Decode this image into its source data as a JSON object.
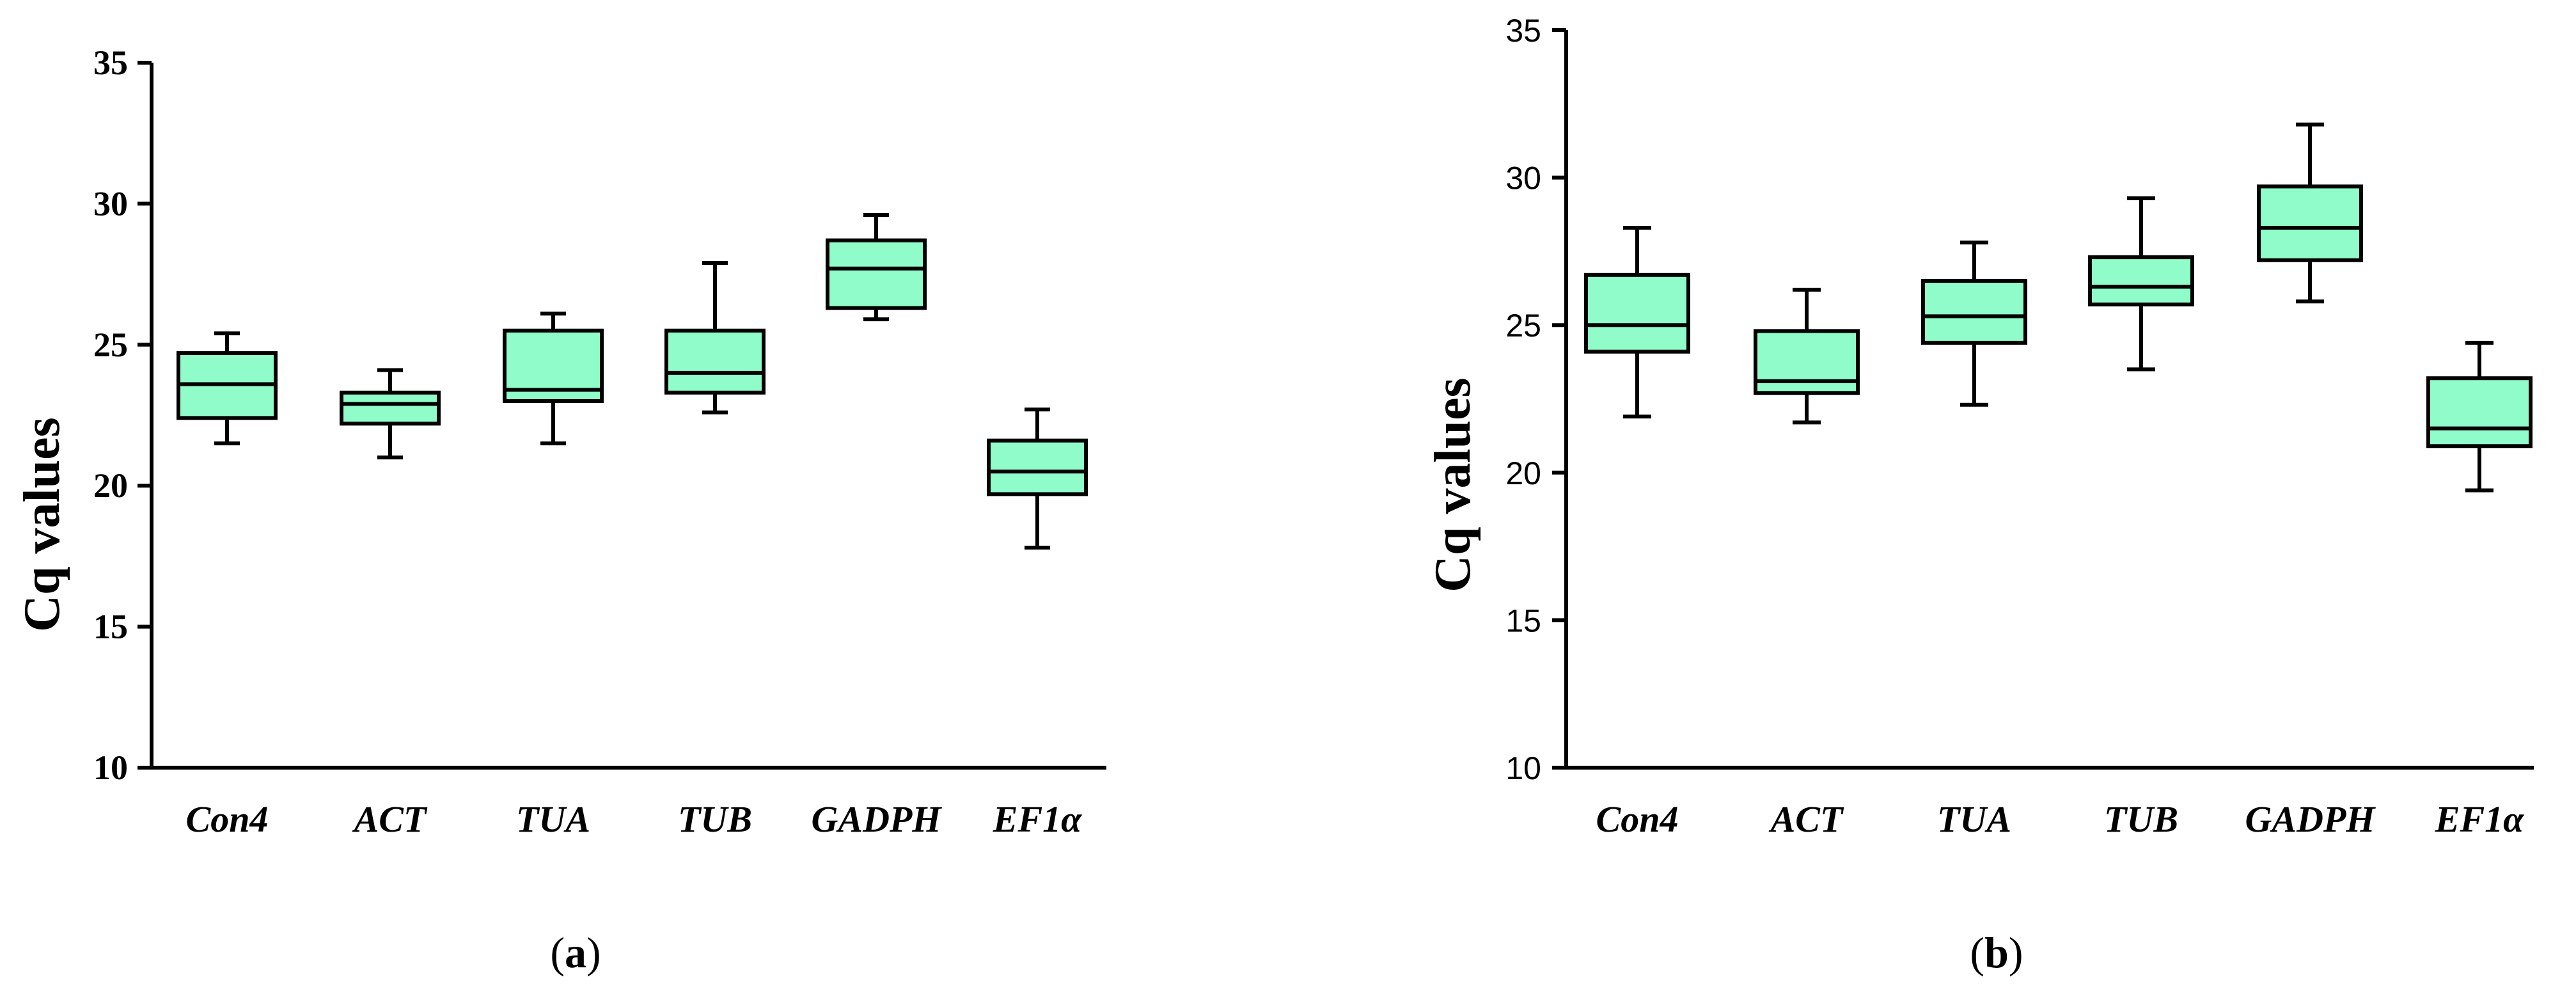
{
  "colors": {
    "box_fill": "#8FFCC9",
    "stroke": "#000000",
    "background": "#ffffff"
  },
  "chart_data": [
    {
      "type": "box",
      "panel_label": "a",
      "ylabel": "Cq values",
      "ylim": [
        10,
        35
      ],
      "yticks": [
        10,
        15,
        20,
        25,
        30,
        35
      ],
      "categories": [
        "Con4",
        "ACT",
        "TUA",
        "TUB",
        "GADPH",
        "EF1α"
      ],
      "boxes": [
        {
          "name": "Con4",
          "min": 21.5,
          "q1": 22.4,
          "median": 23.6,
          "q3": 24.7,
          "max": 25.4
        },
        {
          "name": "ACT",
          "min": 21.0,
          "q1": 22.2,
          "median": 22.9,
          "q3": 23.3,
          "max": 24.1
        },
        {
          "name": "TUA",
          "min": 21.5,
          "q1": 23.0,
          "median": 23.4,
          "q3": 25.5,
          "max": 26.1
        },
        {
          "name": "TUB",
          "min": 22.6,
          "q1": 23.3,
          "median": 24.0,
          "q3": 25.5,
          "max": 27.9
        },
        {
          "name": "GADPH",
          "min": 25.9,
          "q1": 26.3,
          "median": 27.7,
          "q3": 28.7,
          "max": 29.6
        },
        {
          "name": "EF1α",
          "min": 17.8,
          "q1": 19.7,
          "median": 20.5,
          "q3": 21.6,
          "max": 22.7
        }
      ]
    },
    {
      "type": "box",
      "panel_label": "b",
      "ylabel": "Cq values",
      "ylim": [
        10,
        35
      ],
      "yticks": [
        10,
        15,
        20,
        25,
        30,
        35
      ],
      "categories": [
        "Con4",
        "ACT",
        "TUA",
        "TUB",
        "GADPH",
        "EF1α"
      ],
      "boxes": [
        {
          "name": "Con4",
          "min": 21.9,
          "q1": 24.1,
          "median": 25.0,
          "q3": 26.7,
          "max": 28.3
        },
        {
          "name": "ACT",
          "min": 21.7,
          "q1": 22.7,
          "median": 23.1,
          "q3": 24.8,
          "max": 26.2
        },
        {
          "name": "TUA",
          "min": 22.3,
          "q1": 24.4,
          "median": 25.3,
          "q3": 26.5,
          "max": 27.8
        },
        {
          "name": "TUB",
          "min": 23.5,
          "q1": 25.7,
          "median": 26.3,
          "q3": 27.3,
          "max": 29.3
        },
        {
          "name": "GADPH",
          "min": 25.8,
          "q1": 27.2,
          "median": 28.3,
          "q3": 29.7,
          "max": 31.8
        },
        {
          "name": "EF1α",
          "min": 19.4,
          "q1": 20.9,
          "median": 21.5,
          "q3": 23.2,
          "max": 24.4
        }
      ]
    }
  ]
}
